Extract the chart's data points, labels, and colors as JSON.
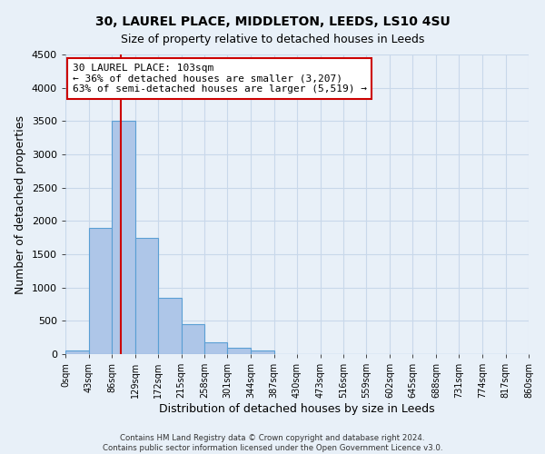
{
  "title_line1": "30, LAUREL PLACE, MIDDLETON, LEEDS, LS10 4SU",
  "title_line2": "Size of property relative to detached houses in Leeds",
  "xlabel": "Distribution of detached houses by size in Leeds",
  "ylabel": "Number of detached properties",
  "bin_labels": [
    "0sqm",
    "43sqm",
    "86sqm",
    "129sqm",
    "172sqm",
    "215sqm",
    "258sqm",
    "301sqm",
    "344sqm",
    "387sqm",
    "430sqm",
    "473sqm",
    "516sqm",
    "559sqm",
    "602sqm",
    "645sqm",
    "688sqm",
    "731sqm",
    "774sqm",
    "817sqm",
    "860sqm"
  ],
  "bin_edges": [
    0,
    43,
    86,
    129,
    172,
    215,
    258,
    301,
    344,
    387,
    430,
    473,
    516,
    559,
    602,
    645,
    688,
    731,
    774,
    817,
    860
  ],
  "bar_heights": [
    50,
    1900,
    3500,
    1750,
    850,
    450,
    175,
    100,
    50,
    0,
    0,
    0,
    0,
    0,
    0,
    0,
    0,
    0,
    0,
    0
  ],
  "bar_color": "#aec6e8",
  "bar_edge_color": "#5a9fd4",
  "vline_x": 103,
  "vline_color": "#cc0000",
  "annotation_line1": "30 LAUREL PLACE: 103sqm",
  "annotation_line2": "← 36% of detached houses are smaller (3,207)",
  "annotation_line3": "63% of semi-detached houses are larger (5,519) →",
  "annotation_box_facecolor": "white",
  "annotation_box_edgecolor": "#cc0000",
  "ylim": [
    0,
    4500
  ],
  "yticks": [
    0,
    500,
    1000,
    1500,
    2000,
    2500,
    3000,
    3500,
    4000,
    4500
  ],
  "grid_color": "#c8d8ea",
  "background_color": "#e8f0f8",
  "footer_line1": "Contains HM Land Registry data © Crown copyright and database right 2024.",
  "footer_line2": "Contains public sector information licensed under the Open Government Licence v3.0."
}
